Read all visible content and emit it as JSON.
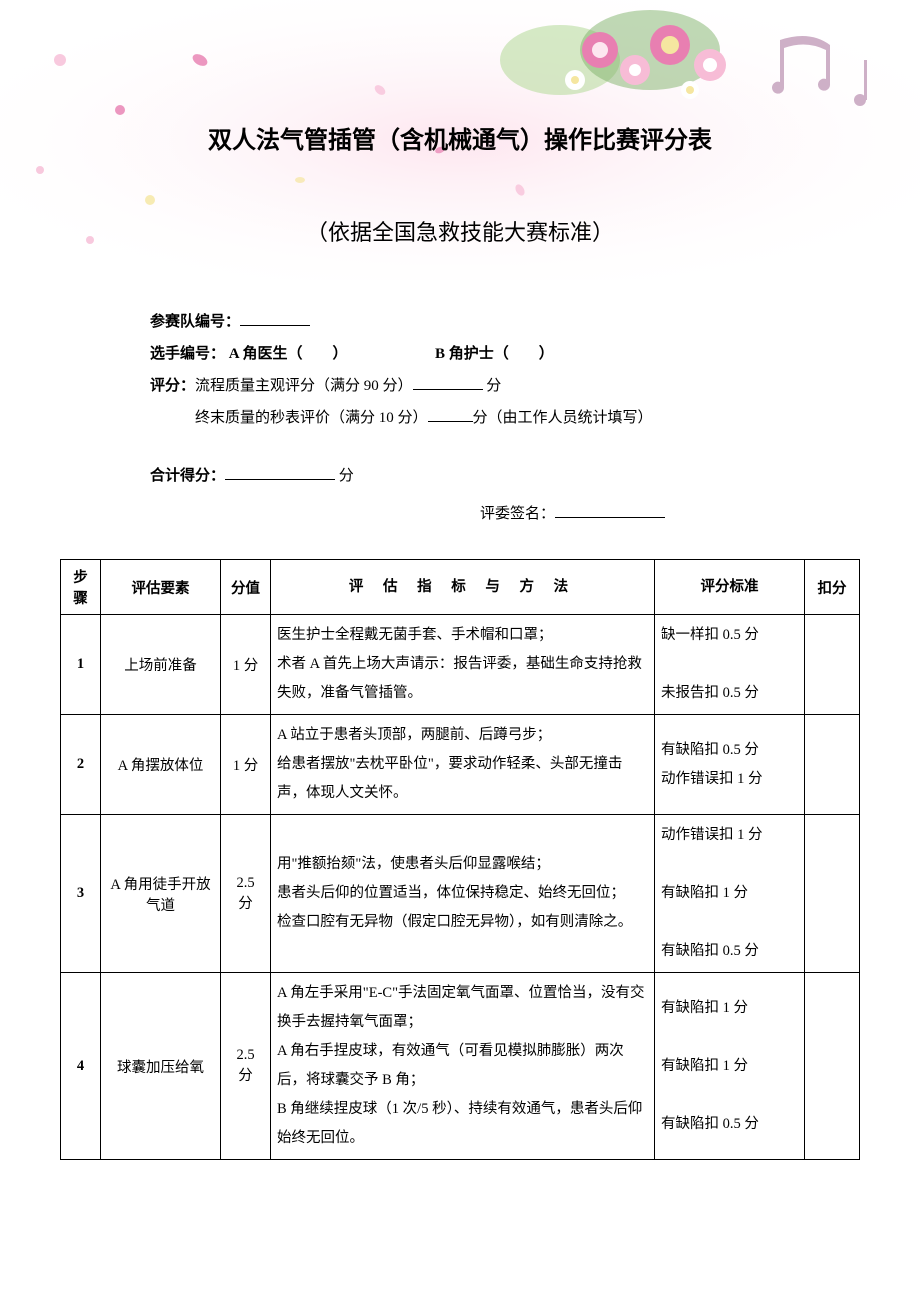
{
  "colors": {
    "page_bg": "#ffffff",
    "text": "#000000",
    "border": "#000000",
    "floral_pink_light": "#fde6ef",
    "floral_pink": "#f7bcd6",
    "floral_pink_dark": "#e87fb1",
    "floral_green": "#b9dca0",
    "floral_green_dark": "#7fb26a",
    "floral_yellow": "#f5e6a0",
    "floral_white": "#ffffff",
    "music_note": "#c9a8c2"
  },
  "title": "双人法气管插管（含机械通气）操作比赛评分表",
  "subtitle": "（依据全国急救技能大赛标准）",
  "info": {
    "team_label": "参赛队编号：",
    "player_label": "选手编号：",
    "role_a": " A 角医生（　　）",
    "role_b": "B 角护士（　　）",
    "scoring_label": "评分：",
    "line1_pre": "流程质量主观评分（满分 90 分）",
    "line1_post": " 分",
    "line2_pre": "终末质量的秒表评价（满分 10 分）",
    "line2_post": "分（由工作人员统计填写）",
    "total_label": "合计得分：",
    "total_unit": " 分",
    "judge_label": "评委签名："
  },
  "table": {
    "headers": {
      "step": "步骤",
      "element": "评估要素",
      "score": "分值",
      "criteria": "评 估 指 标 与 方 法",
      "standard": "评分标准",
      "deduct": "扣分"
    },
    "rows": [
      {
        "step": "1",
        "element": "上场前准备",
        "score": "1 分",
        "criteria": [
          "医生护士全程戴无菌手套、手术帽和口罩；",
          "术者 A 首先上场大声请示：报告评委，基础生命支持抢救失败，准备气管插管。"
        ],
        "standard": [
          "缺一样扣 0.5 分",
          "",
          "未报告扣 0.5 分"
        ]
      },
      {
        "step": "2",
        "element": "A 角摆放体位",
        "score": "1 分",
        "criteria": [
          "A 站立于患者头顶部，两腿前、后蹲弓步；",
          "给患者摆放\"去枕平卧位\"，要求动作轻柔、头部无撞击声，体现人文关怀。"
        ],
        "standard": [
          "有缺陷扣 0.5 分",
          "动作错误扣 1 分"
        ]
      },
      {
        "step": "3",
        "element": "A 角用徒手开放气道",
        "score": "2.5分",
        "criteria": [
          "用\"推额抬颏\"法，使患者头后仰显露喉结；",
          "患者头后仰的位置适当，体位保持稳定、始终无回位；",
          "检查口腔有无异物（假定口腔无异物），如有则清除之。"
        ],
        "standard": [
          "动作错误扣 1 分",
          "",
          "有缺陷扣 1 分",
          "",
          "有缺陷扣 0.5 分"
        ]
      },
      {
        "step": "4",
        "element": "球囊加压给氧",
        "score": "2.5分",
        "criteria": [
          "A 角左手采用\"E-C\"手法固定氧气面罩、位置恰当，没有交换手去握持氧气面罩；",
          "A 角右手捏皮球，有效通气（可看见模拟肺膨胀）两次后，将球囊交予 B 角；",
          "B 角继续捏皮球（1 次/5 秒）、持续有效通气，患者头后仰始终无回位。"
        ],
        "standard": [
          "有缺陷扣 1 分",
          "",
          "有缺陷扣 1 分",
          "",
          "有缺陷扣 0.5 分"
        ]
      }
    ]
  }
}
